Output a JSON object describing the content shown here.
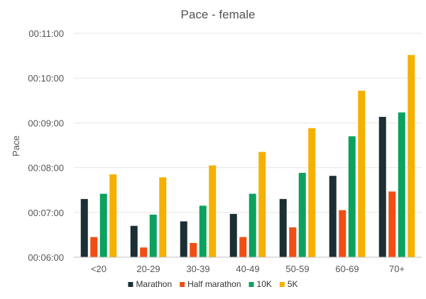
{
  "chart_data": {
    "type": "bar",
    "title": "Pace - female",
    "xlabel": "",
    "ylabel": "Pace",
    "ylim": [
      "00:06:00",
      "00:11:00"
    ],
    "yticks": [
      "00:06:00",
      "00:07:00",
      "00:08:00",
      "00:09:00",
      "00:10:00",
      "00:11:00"
    ],
    "grid": true,
    "legend": "bottom",
    "categories": [
      "<20",
      "20-29",
      "30-39",
      "40-49",
      "50-59",
      "60-69",
      "70+"
    ],
    "series": [
      {
        "name": "Marathon",
        "color": "#1b2f35",
        "values": [
          "00:07:18",
          "00:06:42",
          "00:06:48",
          "00:06:58",
          "00:07:18",
          "00:07:49",
          "00:09:08"
        ]
      },
      {
        "name": "Half marathon",
        "color": "#f04e14",
        "values": [
          "00:06:27",
          "00:06:13",
          "00:06:19",
          "00:06:27",
          "00:06:40",
          "00:07:03",
          "00:07:28"
        ]
      },
      {
        "name": "10K",
        "color": "#0ba15e",
        "values": [
          "00:07:25",
          "00:06:57",
          "00:07:09",
          "00:07:25",
          "00:07:53",
          "00:08:42",
          "00:09:14"
        ]
      },
      {
        "name": "5K",
        "color": "#f5b000",
        "values": [
          "00:07:51",
          "00:07:47",
          "00:08:03",
          "00:08:21",
          "00:08:53",
          "00:09:43",
          "00:10:31"
        ]
      }
    ]
  }
}
